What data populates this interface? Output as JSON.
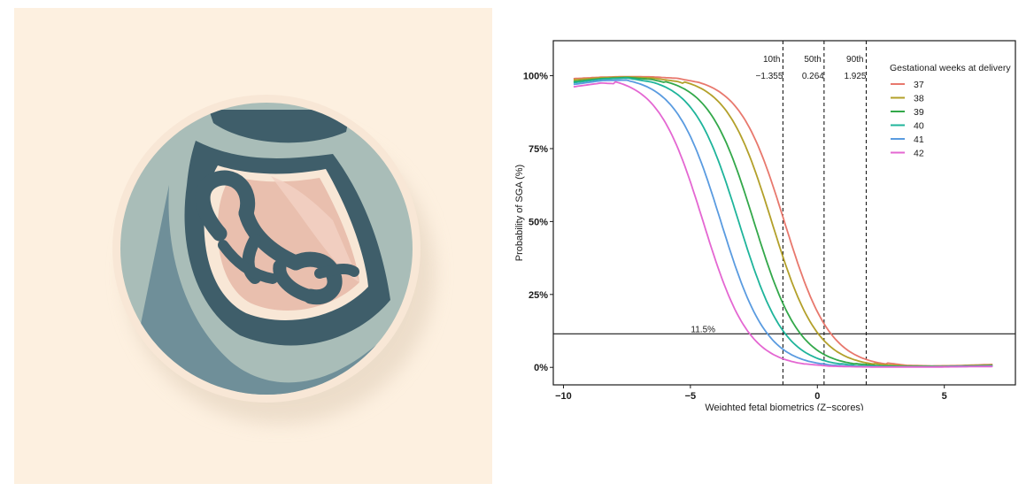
{
  "illustration": {
    "subject": "fetus-in-womb-icon",
    "colors": {
      "background": "#fdf0e0",
      "disc_light": "#a9bdb8",
      "disc_mid": "#6f8f99",
      "dark": "#3f5e6a",
      "uterus": "#e9bfae",
      "outline": "#f8e7d6"
    }
  },
  "chart_data": {
    "type": "line",
    "xlabel": "Weighted fetal biometrics (Z−scores)",
    "ylabel": "Probability of SGA (%)",
    "xlim": [
      -10.4,
      7.8
    ],
    "ylim": [
      -6,
      112
    ],
    "x_ticks": [
      {
        "value": -10,
        "label": "−10"
      },
      {
        "value": -5,
        "label": "−5"
      },
      {
        "value": 0,
        "label": "0"
      },
      {
        "value": 5,
        "label": "5"
      }
    ],
    "y_ticks": [
      {
        "value": 0,
        "label": "0%"
      },
      {
        "value": 25,
        "label": "25%"
      },
      {
        "value": 50,
        "label": "50%"
      },
      {
        "value": 75,
        "label": "75%"
      },
      {
        "value": 100,
        "label": "100%"
      }
    ],
    "grid": false,
    "hline": {
      "y": 11.5,
      "label": "11.5%",
      "label_x": -4.5
    },
    "vlines": [
      {
        "x": -1.355,
        "percentile": "10th",
        "value_label": "−1.355"
      },
      {
        "x": 0.264,
        "percentile": "50th",
        "value_label": "0.264"
      },
      {
        "x": 1.925,
        "percentile": "90th",
        "value_label": "1.925"
      }
    ],
    "legend": {
      "title": "Gestational weeks at delivery",
      "position": "top-right"
    },
    "series": [
      {
        "name": "37",
        "color": "#E8786D",
        "midpoint": -1.3,
        "scale": 0.9,
        "x": [
          -9.6,
          -8.5,
          -7.5,
          -6.5,
          -5.5,
          -4.5,
          -3.5,
          -2.5,
          -1.5,
          -0.5,
          0.5,
          1.5,
          2.5,
          3.5,
          4.5,
          5.5,
          6.9
        ],
        "y": [
          99.0,
          99.5,
          99.7,
          99.6,
          99.1,
          97.4,
          93.0,
          79.0,
          55.0,
          30.0,
          13.0,
          5.0,
          1.8,
          0.7,
          0.5,
          0.6,
          1.0
        ]
      },
      {
        "name": "38",
        "color": "#B3A02A",
        "midpoint": -1.8,
        "scale": 0.9,
        "x": [
          -9.6,
          -8.5,
          -7.5,
          -6.5,
          -5.5,
          -4.5,
          -3.5,
          -2.5,
          -1.5,
          -0.5,
          0.5,
          1.5,
          2.5,
          3.5,
          4.5,
          5.5,
          6.9
        ],
        "y": [
          98.6,
          99.3,
          99.6,
          99.2,
          98.0,
          95.1,
          85.0,
          65.0,
          40.0,
          18.0,
          7.0,
          2.6,
          1.0,
          0.5,
          0.4,
          0.5,
          0.8
        ]
      },
      {
        "name": "39",
        "color": "#33A84A",
        "midpoint": -2.5,
        "scale": 0.9,
        "x": [
          -9.6,
          -8.5,
          -7.5,
          -6.5,
          -5.5,
          -4.5,
          -3.5,
          -2.5,
          -1.5,
          -0.5,
          0.5,
          1.5,
          2.5,
          3.5,
          4.5,
          5.5,
          6.9
        ],
        "y": [
          98.0,
          99.0,
          99.4,
          98.7,
          96.6,
          90.0,
          75.0,
          50.0,
          25.0,
          10.0,
          3.5,
          1.3,
          0.5,
          0.3,
          0.3,
          0.4,
          0.6
        ]
      },
      {
        "name": "40",
        "color": "#1FB49B",
        "midpoint": -3.1,
        "scale": 0.9,
        "x": [
          -9.6,
          -8.5,
          -7.5,
          -6.5,
          -5.5,
          -4.5,
          -3.5,
          -2.5,
          -1.5,
          -0.5,
          0.5,
          1.5,
          2.5,
          3.5,
          4.5,
          5.5,
          6.9
        ],
        "y": [
          97.6,
          98.8,
          99.2,
          97.8,
          93.5,
          83.0,
          61.0,
          34.0,
          14.0,
          5.0,
          1.8,
          0.6,
          0.3,
          0.2,
          0.2,
          0.3,
          0.5
        ]
      },
      {
        "name": "41",
        "color": "#5A9BE0",
        "midpoint": -3.8,
        "scale": 0.9,
        "x": [
          -9.6,
          -8.5,
          -7.5,
          -6.5,
          -5.5,
          -4.5,
          -3.5,
          -2.5,
          -1.5,
          -0.5,
          0.5,
          1.5,
          2.5,
          3.5,
          4.5,
          5.5,
          6.9
        ],
        "y": [
          97.0,
          98.3,
          98.5,
          95.5,
          87.0,
          69.0,
          42.0,
          19.0,
          7.0,
          2.4,
          0.8,
          0.3,
          0.2,
          0.2,
          0.2,
          0.3,
          0.4
        ]
      },
      {
        "name": "42",
        "color": "#E467D2",
        "midpoint": -4.5,
        "scale": 0.9,
        "x": [
          -9.6,
          -8.5,
          -7.5,
          -6.5,
          -5.5,
          -4.5,
          -3.5,
          -2.5,
          -1.5,
          -0.5,
          0.5,
          1.5,
          2.5,
          3.5,
          4.5,
          5.5,
          6.9
        ],
        "y": [
          96.2,
          97.5,
          97.0,
          90.5,
          75.0,
          50.0,
          25.0,
          10.0,
          3.5,
          1.2,
          0.4,
          0.2,
          0.1,
          0.1,
          0.1,
          0.2,
          0.3
        ]
      }
    ]
  }
}
